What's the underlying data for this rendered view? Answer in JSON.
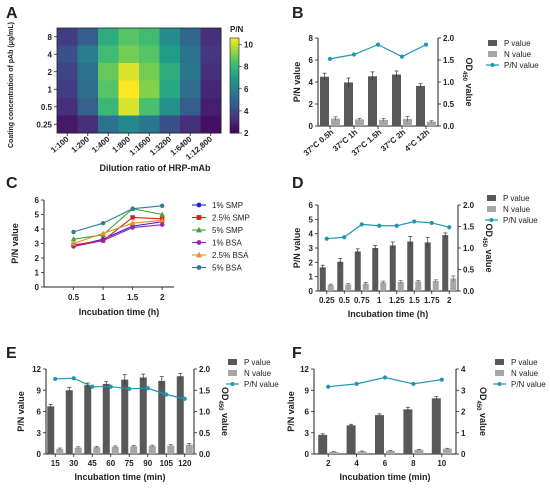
{
  "chart_data": [
    {
      "panel": "A",
      "type": "heatmap",
      "xlabel": "Dilution ratio of HRP-mAb",
      "ylabel": "Coating concentration of pAb (μg/mL)",
      "x_categories": [
        "1:100",
        "1:200",
        "1:400",
        "1:800",
        "1:1600",
        "1:3200",
        "1:6400",
        "1:12,800"
      ],
      "y_categories": [
        "8",
        "4",
        "2",
        "1",
        "0.5",
        "0.25"
      ],
      "values": [
        [
          3.6,
          4.6,
          7.6,
          8.6,
          8.2,
          6.4,
          5.0,
          3.2
        ],
        [
          4.2,
          5.8,
          8.2,
          9.0,
          8.6,
          7.0,
          5.4,
          3.4
        ],
        [
          3.8,
          5.4,
          8.8,
          10.2,
          9.0,
          7.6,
          5.6,
          3.2
        ],
        [
          3.6,
          5.2,
          8.6,
          10.6,
          9.2,
          7.4,
          5.2,
          3.0
        ],
        [
          3.2,
          4.8,
          8.0,
          10.2,
          8.4,
          6.6,
          4.6,
          2.8
        ],
        [
          2.6,
          3.2,
          5.4,
          6.2,
          5.6,
          4.2,
          3.2,
          2.4
        ]
      ],
      "colorbar": {
        "title": "P/N",
        "ticks": [
          2,
          4,
          6,
          8,
          10
        ],
        "range": [
          2,
          10.6
        ]
      }
    },
    {
      "panel": "B",
      "type": "bar",
      "categories": [
        "37°C 0.5h",
        "37°C 1h",
        "37°C 1.5h",
        "37°C 2h",
        "4°C 12h"
      ],
      "ylabel": "P/N value",
      "y2label": "OD450 value",
      "ylim": [
        0,
        8
      ],
      "yticks": [
        0,
        2,
        4,
        6,
        8
      ],
      "y2lim": [
        0,
        2
      ],
      "y2ticks": [
        "0.0",
        "0.5",
        "1.0",
        "1.5",
        "2.0"
      ],
      "series": [
        {
          "name": "P value",
          "axis": "y2",
          "values": [
            1.12,
            0.99,
            1.13,
            1.17,
            0.91
          ],
          "err": [
            0.08,
            0.1,
            0.1,
            0.08,
            0.05
          ]
        },
        {
          "name": "N value",
          "axis": "y2",
          "values": [
            0.17,
            0.15,
            0.14,
            0.16,
            0.1
          ],
          "err": [
            0.04,
            0.02,
            0.03,
            0.06,
            0.02
          ]
        },
        {
          "name": "P/N value",
          "axis": "y",
          "values": [
            6.1,
            6.5,
            7.4,
            6.3,
            7.4
          ]
        }
      ]
    },
    {
      "panel": "C",
      "type": "line",
      "x": [
        0.5,
        1,
        1.5,
        2
      ],
      "xlabel": "Incubation time (h)",
      "ylabel": "P/N value",
      "xlim": [
        0,
        2.2
      ],
      "ylim": [
        0,
        6
      ],
      "yticks": [
        0,
        1,
        2,
        3,
        4,
        5,
        6
      ],
      "series": [
        {
          "name": "1% SMP",
          "color": "#1d24d6",
          "marker": "circle",
          "values": [
            2.8,
            3.3,
            4.2,
            4.5
          ]
        },
        {
          "name": "2.5% SMP",
          "color": "#e01a1a",
          "marker": "square",
          "values": [
            2.9,
            3.2,
            4.8,
            4.7
          ]
        },
        {
          "name": "5% SMP",
          "color": "#3aa83a",
          "marker": "triangle",
          "values": [
            3.3,
            3.6,
            5.4,
            5.0
          ]
        },
        {
          "name": "1% BSA",
          "color": "#9a22b3",
          "marker": "circle",
          "values": [
            2.8,
            3.2,
            4.1,
            4.3
          ]
        },
        {
          "name": "2.5% BSA",
          "color": "#f08c1a",
          "marker": "triangle",
          "values": [
            3.0,
            3.7,
            4.4,
            4.6
          ]
        },
        {
          "name": "5% BSA",
          "color": "#2e7f8c",
          "marker": "circle",
          "values": [
            3.8,
            4.4,
            5.4,
            5.6
          ]
        }
      ]
    },
    {
      "panel": "D",
      "type": "bar",
      "categories": [
        "0.25",
        "0.5",
        "0.75",
        "1",
        "1.25",
        "1.5",
        "1.75",
        "2"
      ],
      "xlabel": "Incubation time (h)",
      "ylabel": "P/N value",
      "y2label": "OD450 value",
      "ylim": [
        0,
        6
      ],
      "yticks": [
        0,
        1,
        2,
        3,
        4,
        5,
        6
      ],
      "y2lim": [
        0,
        2
      ],
      "y2ticks": [
        "0.0",
        "0.5",
        "1.0",
        "1.5",
        "2.0"
      ],
      "series": [
        {
          "name": "P value",
          "axis": "y2",
          "values": [
            0.55,
            0.68,
            0.92,
            1.0,
            1.06,
            1.15,
            1.13,
            1.3
          ],
          "err": [
            0.05,
            0.08,
            0.06,
            0.06,
            0.08,
            0.12,
            0.12,
            0.05
          ]
        },
        {
          "name": "N value",
          "axis": "y2",
          "values": [
            0.14,
            0.15,
            0.17,
            0.2,
            0.21,
            0.22,
            0.23,
            0.29
          ],
          "err": [
            0.02,
            0.02,
            0.03,
            0.03,
            0.03,
            0.02,
            0.03,
            0.06
          ]
        },
        {
          "name": "P/N value",
          "axis": "y",
          "values": [
            3.65,
            3.75,
            4.65,
            4.55,
            4.55,
            4.85,
            4.75,
            4.45
          ]
        }
      ]
    },
    {
      "panel": "E",
      "type": "bar",
      "categories": [
        "15",
        "30",
        "45",
        "60",
        "75",
        "90",
        "105",
        "120"
      ],
      "xlabel": "Incubation time (min)",
      "ylabel": "P/N value",
      "y2label": "OD450 value",
      "ylim": [
        0,
        12
      ],
      "yticks": [
        0,
        3,
        6,
        9,
        12
      ],
      "y2lim": [
        0,
        2
      ],
      "y2ticks": [
        "0.0",
        "0.5",
        "1.0",
        "1.5",
        "2.0"
      ],
      "series": [
        {
          "name": "P value",
          "axis": "y2",
          "values": [
            1.12,
            1.5,
            1.62,
            1.65,
            1.75,
            1.8,
            1.72,
            1.83
          ],
          "err": [
            0.05,
            0.07,
            0.05,
            0.05,
            0.12,
            0.08,
            0.1,
            0.07
          ]
        },
        {
          "name": "N value",
          "axis": "y2",
          "values": [
            0.12,
            0.15,
            0.16,
            0.17,
            0.18,
            0.19,
            0.2,
            0.22
          ],
          "err": [
            0.02,
            0.02,
            0.02,
            0.02,
            0.02,
            0.02,
            0.02,
            0.03
          ]
        },
        {
          "name": "P/N value",
          "axis": "y",
          "values": [
            10.6,
            10.7,
            9.5,
            9.5,
            9.2,
            9.3,
            8.4,
            7.8
          ]
        }
      ]
    },
    {
      "panel": "F",
      "type": "bar",
      "categories": [
        "2",
        "4",
        "6",
        "8",
        "10"
      ],
      "xlabel": "Incubation time (min)",
      "ylabel": "P/N value",
      "y2label": "OD450 value",
      "ylim": [
        0,
        12
      ],
      "yticks": [
        0,
        3,
        6,
        9,
        12
      ],
      "y2lim": [
        0,
        4
      ],
      "y2ticks": [
        "0",
        "1",
        "2",
        "3",
        "4"
      ],
      "series": [
        {
          "name": "P value",
          "axis": "y2",
          "values": [
            0.9,
            1.35,
            1.83,
            2.1,
            2.62
          ],
          "err": [
            0.05,
            0.05,
            0.06,
            0.1,
            0.08
          ]
        },
        {
          "name": "N value",
          "axis": "y2",
          "values": [
            0.1,
            0.12,
            0.15,
            0.2,
            0.25
          ],
          "err": [
            0.02,
            0.02,
            0.02,
            0.02,
            0.02
          ]
        },
        {
          "name": "P/N value",
          "axis": "y",
          "values": [
            9.5,
            9.9,
            10.8,
            9.9,
            10.5
          ]
        }
      ]
    }
  ]
}
